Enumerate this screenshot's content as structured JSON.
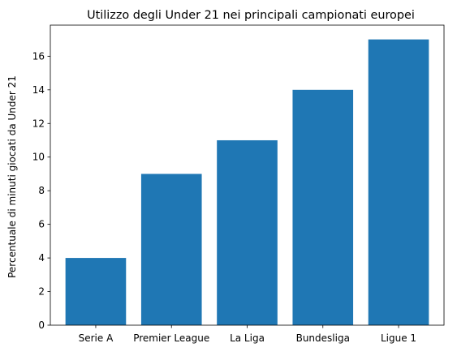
{
  "chart_data": {
    "type": "bar",
    "title": "Utilizzo degli Under 21 nei principali campionati europei",
    "xlabel": "",
    "ylabel": "Percentuale di minuti giocati da Under 21",
    "categories": [
      "Serie A",
      "Premier League",
      "La Liga",
      "Bundesliga",
      "Ligue 1"
    ],
    "values": [
      4,
      9,
      11,
      14,
      17
    ],
    "ylim": [
      0,
      17.85
    ],
    "yticks": [
      0,
      2,
      4,
      6,
      8,
      10,
      12,
      14,
      16
    ],
    "grid": false,
    "bar_color": "#1f77b4"
  }
}
